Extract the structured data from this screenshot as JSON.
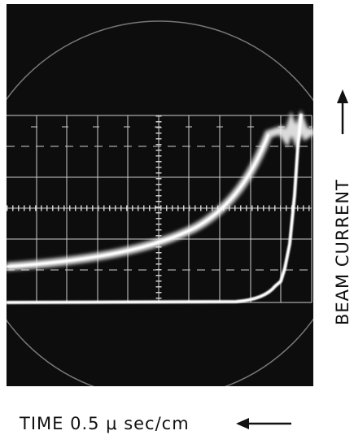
{
  "labels": {
    "x_axis": "TIME 0.5 μ sec/cm",
    "y_axis": "BEAM CURRENT"
  }
}
